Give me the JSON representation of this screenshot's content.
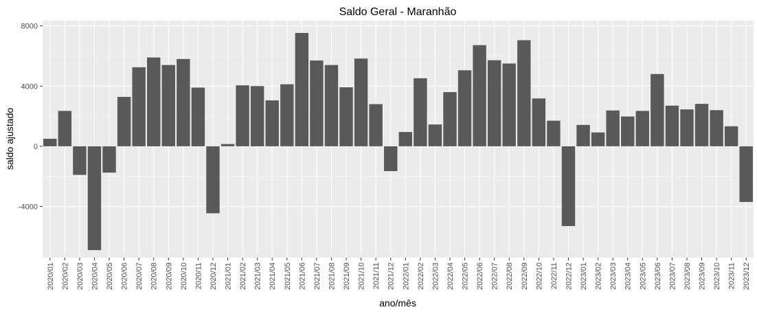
{
  "chart_data": {
    "type": "bar",
    "title": "Saldo Geral - Maranhão",
    "xlabel": "ano/mês",
    "ylabel": "saldo ajustado",
    "categories": [
      "2020/01",
      "2020/02",
      "2020/03",
      "2020/04",
      "2020/05",
      "2020/06",
      "2020/07",
      "2020/08",
      "2020/09",
      "2020/10",
      "2020/11",
      "2020/12",
      "2021/01",
      "2021/02",
      "2021/03",
      "2021/04",
      "2021/05",
      "2021/06",
      "2021/07",
      "2021/08",
      "2021/09",
      "2021/10",
      "2021/11",
      "2021/12",
      "2022/01",
      "2022/02",
      "2022/03",
      "2022/04",
      "2022/05",
      "2022/06",
      "2022/07",
      "2022/08",
      "2022/09",
      "2022/10",
      "2022/11",
      "2022/12",
      "2023/01",
      "2023/02",
      "2023/03",
      "2023/04",
      "2023/05",
      "2023/06",
      "2023/07",
      "2023/08",
      "2023/09",
      "2023/10",
      "2023/11",
      "2023/12"
    ],
    "values": [
      500,
      2350,
      -1900,
      -6900,
      -1750,
      3280,
      5250,
      5900,
      5400,
      5800,
      3900,
      -4450,
      150,
      4050,
      4000,
      3050,
      4120,
      7530,
      5700,
      5400,
      3920,
      5830,
      2800,
      -1650,
      950,
      4520,
      1450,
      3600,
      5050,
      6720,
      5720,
      5500,
      7050,
      3180,
      1700,
      -5300,
      1420,
      920,
      2380,
      1980,
      2350,
      4800,
      2700,
      2450,
      2820,
      2400,
      1330,
      -3700
    ],
    "yticks": [
      -4000,
      0,
      4000,
      8000
    ],
    "ylim": [
      -7400,
      8350
    ],
    "grid": true,
    "colors": {
      "bar": "#595959",
      "panel": "#ebebeb",
      "grid_major": "#ffffff",
      "text": "#4d4d4d"
    }
  }
}
